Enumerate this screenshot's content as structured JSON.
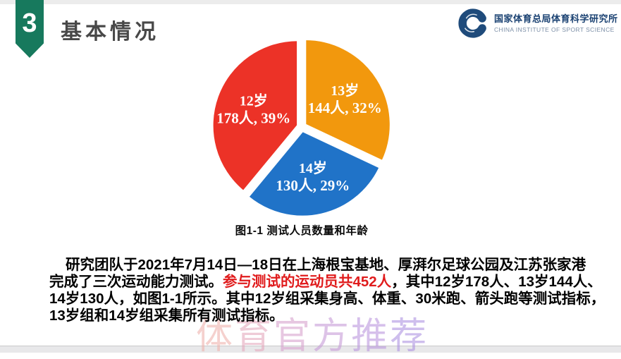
{
  "slide": {
    "section_number": "3",
    "title": "基本情况"
  },
  "logo": {
    "org_cn": "国家体育总局体育科学研究所",
    "org_en": "CHINA INSTITUTE OF SPORT SCIENCE",
    "emblem_icon": "dragon-c-emblem",
    "color_navy": "#1C4373",
    "color_en_text": "#7B8EA6"
  },
  "chart_data": {
    "type": "pie",
    "title": "图1-1 测试人员数量和年龄",
    "start_angle_deg": 0,
    "direction": "clockwise",
    "legend": "none",
    "label_position": "inside",
    "label_color": "#FFFFFF",
    "slices": [
      {
        "label": "13岁",
        "people": 144,
        "percent": 32,
        "color": "#F2980D"
      },
      {
        "label": "14岁",
        "people": 130,
        "percent": 29,
        "color": "#2073C8"
      },
      {
        "label": "12岁",
        "people": 178,
        "percent": 39,
        "color": "#EC3227"
      }
    ]
  },
  "paragraph": {
    "text_color": "#000000",
    "highlight_color": "#E01B1C",
    "lines": [
      {
        "segments": [
          {
            "text": "研究团队于2021年7月14日—18日在上海根宝基地、厚湃尔足球公园及江苏张家港",
            "style": "normal"
          }
        ]
      },
      {
        "segments": [
          {
            "text": "完成了三次运动能力测试。",
            "style": "normal"
          },
          {
            "text": "参与测试的运动员共452人",
            "style": "red"
          },
          {
            "text": "，其中12岁178人、13岁144人、",
            "style": "normal"
          }
        ]
      },
      {
        "segments": [
          {
            "text": "14岁130人，如图1-1所示。其中12岁组采集身高、体重、30米跑、箭头跑等测试指标，",
            "style": "normal"
          }
        ]
      },
      {
        "segments": [
          {
            "text": "13岁组和14岁组采集所有测试指标。",
            "style": "normal"
          }
        ]
      }
    ]
  },
  "watermark": {
    "text": "体育官方推荐",
    "colors": [
      "#EFB3AE",
      "#E5A9BE",
      "#D8A2CE",
      "#C89CD8",
      "#BB97DE",
      "#AF94E2"
    ]
  },
  "theme": {
    "ribbon_green": "#17795D",
    "title_gray": "#484848",
    "top_bar_gray": "#ECECEC",
    "bottom_bar_gray": "#E8E8EA"
  }
}
